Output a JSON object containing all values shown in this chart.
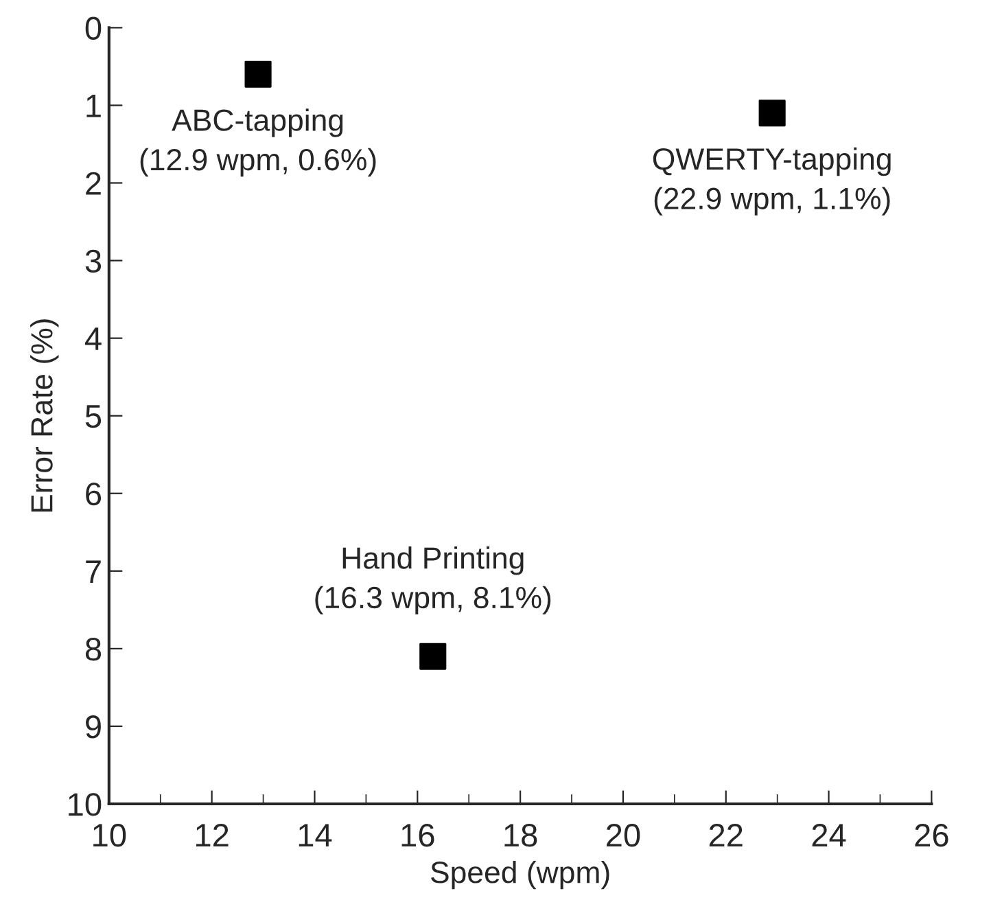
{
  "chart_data": {
    "type": "scatter",
    "xlabel": "Speed (wpm)",
    "ylabel": "Error Rate (%)",
    "x": [
      12.9,
      22.9,
      16.3
    ],
    "series": [
      {
        "color": "#000000",
        "values": [
          0.6,
          1.1,
          8.1
        ]
      }
    ],
    "marker": "square",
    "xlim": [
      10,
      26
    ],
    "xticks": [
      10,
      12,
      14,
      16,
      18,
      20,
      22,
      24,
      26
    ],
    "ylim": [
      10,
      0
    ],
    "yticks": [
      0,
      1,
      2,
      3,
      4,
      5,
      6,
      7,
      8,
      9,
      10
    ],
    "grid": false,
    "annotations": [
      {
        "text": "ABC-tapping\n(12.9 wpm, 0.6%)",
        "x": 12.9,
        "y": 0.6
      },
      {
        "text": "QWERTY-tapping\n(22.9 wpm, 1.1%)",
        "x": 22.9,
        "y": 1.1
      },
      {
        "text": "Hand Printing\n(16.3 wpm, 8.1%)",
        "x": 16.3,
        "y": 8.1
      }
    ]
  }
}
